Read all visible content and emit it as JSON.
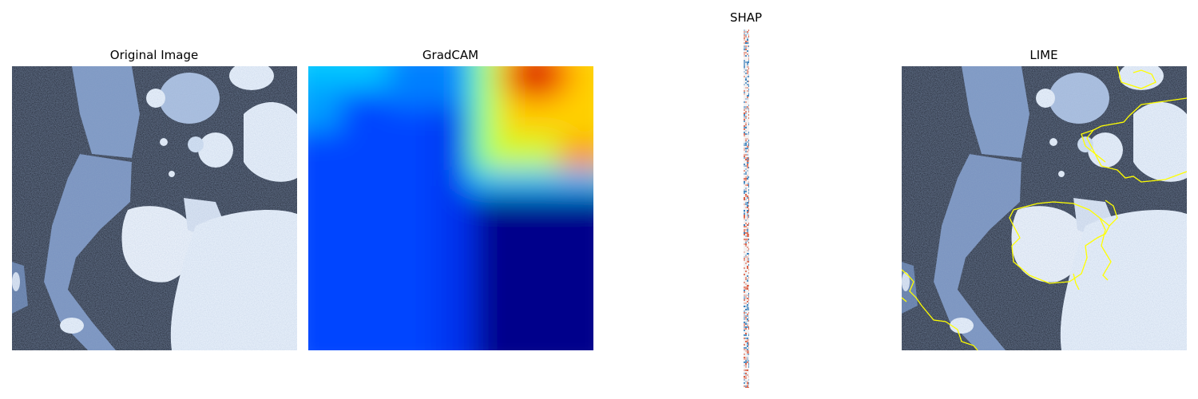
{
  "panels": [
    {
      "id": "original",
      "title": "Original Image"
    },
    {
      "id": "gradcam",
      "title": "GradCAM"
    },
    {
      "id": "shap",
      "title": "SHAP"
    },
    {
      "id": "lime",
      "title": "LIME"
    }
  ],
  "colors": {
    "background": "#ffffff",
    "ct_black": "#000814",
    "ct_tissue": "#7f9cc8",
    "ct_bright": "#f2f8ff",
    "gradcam_low": "#00008b",
    "gradcam_mid": "#0038ff",
    "gradcam_high": "#ff2000",
    "shap_positive": "#d9553a",
    "shap_negative": "#2b78b8",
    "lime_boundary": "#ffff00"
  }
}
